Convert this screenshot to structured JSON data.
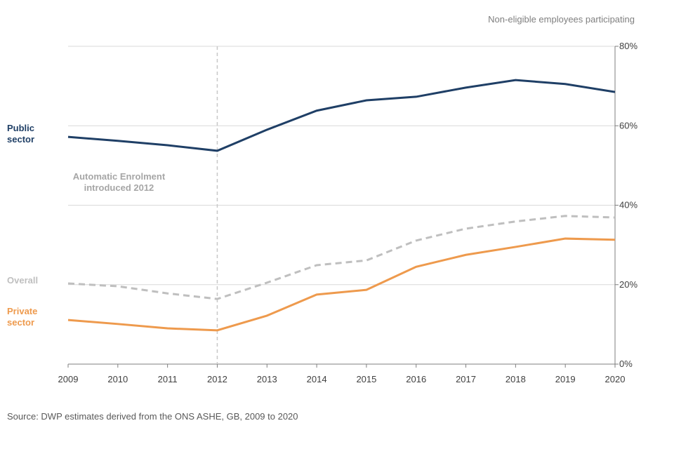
{
  "chart_data": {
    "type": "line",
    "y_axis_label": "Non-eligible employees participating",
    "x": [
      2009,
      2010,
      2011,
      2012,
      2013,
      2014,
      2015,
      2016,
      2017,
      2018,
      2019,
      2020
    ],
    "xlim": [
      2009,
      2020
    ],
    "xticks": [
      2009,
      2010,
      2011,
      2012,
      2013,
      2014,
      2015,
      2016,
      2017,
      2018,
      2019,
      2020
    ],
    "ylim": [
      0,
      80
    ],
    "yticks": [
      {
        "value": 0,
        "label": "0%"
      },
      {
        "value": 20,
        "label": "20%"
      },
      {
        "value": 40,
        "label": "40%"
      },
      {
        "value": 60,
        "label": "60%"
      },
      {
        "value": 80,
        "label": "80%"
      }
    ],
    "grid": true,
    "y_axis_side": "right",
    "series": [
      {
        "name": "Public sector",
        "color": "#1f3f66",
        "style": "solid",
        "values": [
          57.2,
          56.2,
          55.1,
          53.7,
          59.0,
          63.8,
          66.4,
          67.3,
          69.6,
          71.5,
          70.5,
          68.5
        ]
      },
      {
        "name": "Overall",
        "color": "#bfbfbf",
        "style": "dashed",
        "values": [
          20.3,
          19.6,
          17.8,
          16.4,
          20.5,
          24.9,
          26.1,
          31.1,
          34.1,
          35.9,
          37.3,
          36.9
        ]
      },
      {
        "name": "Private sector",
        "color": "#ee9a4d",
        "style": "solid",
        "values": [
          11.1,
          10.1,
          9.0,
          8.5,
          12.2,
          17.5,
          18.7,
          24.5,
          27.5,
          29.5,
          31.6,
          31.3
        ]
      }
    ],
    "annotation": {
      "text": "Automatic Enrolment introduced 2012",
      "x": 2012
    },
    "source": "Source: DWP estimates derived from the ONS ASHE, GB, 2009 to 2020"
  }
}
